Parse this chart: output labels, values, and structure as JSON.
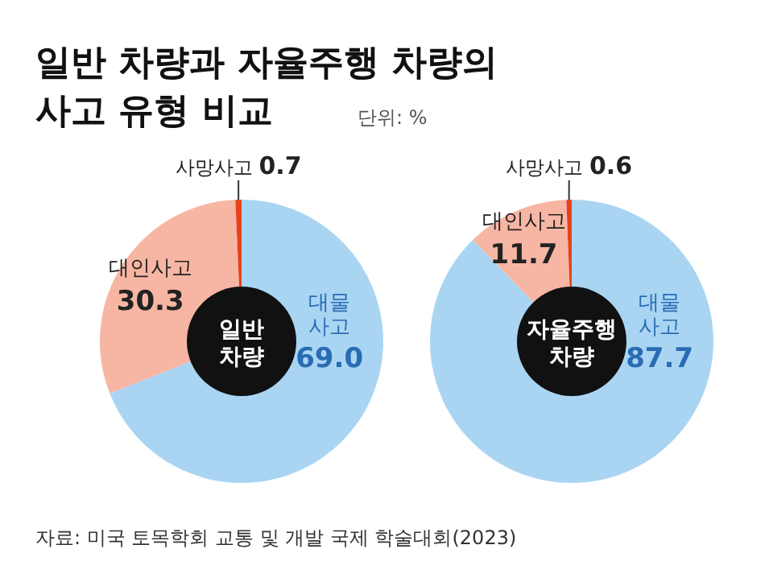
{
  "chart_data": [
    {
      "type": "donut",
      "title": "일반 차량과 자율주행 차량의\n사고 유형 비교",
      "subtitle": "단위: %",
      "annotations": [
        "일반\n차량"
      ],
      "categories": [
        "대물\n사고",
        "대인사고",
        "사망사고"
      ],
      "values": [
        69.0,
        30.3,
        0.7
      ],
      "value_labels": [
        "69.0",
        "30.3",
        "0.7"
      ],
      "colors": [
        "#a9d5f3",
        "#f7b6a3",
        "#e5421d"
      ]
    },
    {
      "type": "donut",
      "annotations": [
        "자율주행\n차량",
        "자료: 미국 토목학회 교통 및 개발 국제 학술대회(2023)"
      ],
      "categories": [
        "대물\n사고",
        "대인사고",
        "사망사고"
      ],
      "values": [
        87.7,
        11.7,
        0.6
      ],
      "value_labels": [
        "87.7",
        "11.7",
        "0.6"
      ],
      "colors": [
        "#a9d5f3",
        "#f7b6a3",
        "#e5421d"
      ]
    }
  ]
}
